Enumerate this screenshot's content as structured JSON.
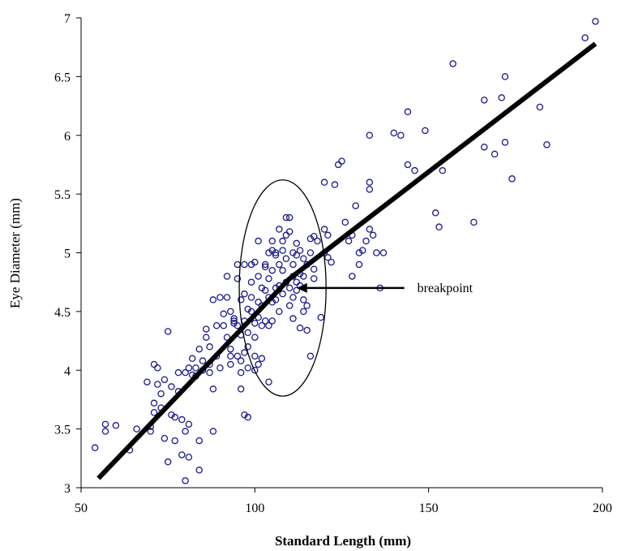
{
  "chart_data": {
    "type": "scatter",
    "title": "",
    "xlabel": "Standard Length (mm)",
    "ylabel": "Eye Diameter (mm)",
    "xlim": [
      50,
      200
    ],
    "ylim": [
      3,
      7
    ],
    "x_ticks": [
      "50",
      "100",
      "150",
      "200"
    ],
    "y_ticks": [
      "3",
      "3.5",
      "4",
      "4.5",
      "5",
      "5.5",
      "6",
      "6.5",
      "7"
    ],
    "grid": false,
    "legend": "none",
    "colors": {
      "points": "#1a1a8c",
      "fit_line": "#000000"
    },
    "fit_line": {
      "type": "piecewise-linear",
      "points": [
        [
          55,
          3.08
        ],
        [
          110,
          4.78
        ],
        [
          198,
          6.78
        ]
      ]
    },
    "annotation": {
      "text": "breakpoint",
      "arrow_from": [
        143,
        4.7
      ],
      "arrow_to": [
        112,
        4.7
      ],
      "ellipse_center": [
        108,
        4.7
      ],
      "ellipse_radii": [
        12.5,
        0.92
      ]
    },
    "points": [
      [
        54,
        3.34
      ],
      [
        57,
        3.48
      ],
      [
        57,
        3.54
      ],
      [
        60,
        3.53
      ],
      [
        64,
        3.32
      ],
      [
        66,
        3.5
      ],
      [
        69,
        3.9
      ],
      [
        70,
        3.52
      ],
      [
        70,
        3.48
      ],
      [
        71,
        3.72
      ],
      [
        71,
        3.64
      ],
      [
        71,
        4.05
      ],
      [
        72,
        4.02
      ],
      [
        72,
        3.88
      ],
      [
        73,
        3.8
      ],
      [
        73,
        3.68
      ],
      [
        74,
        3.42
      ],
      [
        74,
        3.92
      ],
      [
        75,
        3.22
      ],
      [
        75,
        4.33
      ],
      [
        76,
        3.86
      ],
      [
        76,
        3.62
      ],
      [
        77,
        3.6
      ],
      [
        77,
        3.4
      ],
      [
        78,
        3.82
      ],
      [
        78,
        3.98
      ],
      [
        79,
        3.58
      ],
      [
        79,
        3.28
      ],
      [
        80,
        3.06
      ],
      [
        80,
        3.48
      ],
      [
        80,
        3.98
      ],
      [
        81,
        3.54
      ],
      [
        81,
        3.26
      ],
      [
        81,
        4.02
      ],
      [
        82,
        3.96
      ],
      [
        82,
        4.1
      ],
      [
        83,
        4.02
      ],
      [
        83,
        3.95
      ],
      [
        84,
        3.15
      ],
      [
        84,
        3.4
      ],
      [
        84,
        4.18
      ],
      [
        85,
        4.0
      ],
      [
        85,
        4.08
      ],
      [
        86,
        4.28
      ],
      [
        86,
        4.35
      ],
      [
        87,
        4.2
      ],
      [
        87,
        4.05
      ],
      [
        87,
        3.98
      ],
      [
        88,
        3.48
      ],
      [
        88,
        3.84
      ],
      [
        88,
        4.6
      ],
      [
        89,
        4.38
      ],
      [
        89,
        4.12
      ],
      [
        90,
        4.02
      ],
      [
        90,
        4.62
      ],
      [
        91,
        4.48
      ],
      [
        91,
        4.38
      ],
      [
        92,
        4.62
      ],
      [
        92,
        4.8
      ],
      [
        92,
        4.28
      ],
      [
        93,
        4.12
      ],
      [
        93,
        4.05
      ],
      [
        93,
        4.18
      ],
      [
        93,
        4.5
      ],
      [
        94,
        4.4
      ],
      [
        94,
        4.42
      ],
      [
        94,
        4.44
      ],
      [
        95,
        4.12
      ],
      [
        95,
        4.38
      ],
      [
        95,
        4.78
      ],
      [
        95,
        4.9
      ],
      [
        96,
        4.6
      ],
      [
        96,
        4.3
      ],
      [
        96,
        4.08
      ],
      [
        96,
        3.84
      ],
      [
        96,
        3.98
      ],
      [
        97,
        3.62
      ],
      [
        97,
        4.15
      ],
      [
        97,
        4.42
      ],
      [
        97,
        4.9
      ],
      [
        97,
        4.65
      ],
      [
        98,
        4.52
      ],
      [
        98,
        4.32
      ],
      [
        98,
        4.2
      ],
      [
        98,
        4.02
      ],
      [
        98,
        3.6
      ],
      [
        99,
        4.9
      ],
      [
        99,
        4.75
      ],
      [
        99,
        4.62
      ],
      [
        99,
        4.5
      ],
      [
        100,
        4.92
      ],
      [
        100,
        4.4
      ],
      [
        100,
        4.28
      ],
      [
        100,
        4.0
      ],
      [
        100,
        4.12
      ],
      [
        101,
        4.45
      ],
      [
        101,
        4.58
      ],
      [
        101,
        5.1
      ],
      [
        101,
        4.8
      ],
      [
        101,
        4.05
      ],
      [
        102,
        4.7
      ],
      [
        102,
        4.55
      ],
      [
        102,
        4.38
      ],
      [
        102,
        4.1
      ],
      [
        103,
        4.88
      ],
      [
        103,
        4.68
      ],
      [
        103,
        4.42
      ],
      [
        103,
        4.9
      ],
      [
        104,
        5.0
      ],
      [
        104,
        4.78
      ],
      [
        104,
        4.62
      ],
      [
        104,
        4.38
      ],
      [
        104,
        3.9
      ],
      [
        105,
        5.1
      ],
      [
        105,
        5.02
      ],
      [
        105,
        4.85
      ],
      [
        105,
        4.58
      ],
      [
        105,
        4.42
      ],
      [
        106,
        4.98
      ],
      [
        106,
        4.7
      ],
      [
        106,
        4.6
      ],
      [
        106,
        5.0
      ],
      [
        107,
        5.2
      ],
      [
        107,
        4.9
      ],
      [
        107,
        4.72
      ],
      [
        107,
        4.5
      ],
      [
        108,
        5.1
      ],
      [
        108,
        5.02
      ],
      [
        108,
        4.85
      ],
      [
        108,
        4.65
      ],
      [
        109,
        5.3
      ],
      [
        109,
        5.15
      ],
      [
        109,
        4.95
      ],
      [
        109,
        4.75
      ],
      [
        110,
        5.3
      ],
      [
        110,
        5.18
      ],
      [
        110,
        4.7
      ],
      [
        110,
        4.55
      ],
      [
        111,
        5.0
      ],
      [
        111,
        4.9
      ],
      [
        111,
        4.8
      ],
      [
        111,
        4.62
      ],
      [
        111,
        4.44
      ],
      [
        112,
        5.08
      ],
      [
        112,
        4.98
      ],
      [
        112,
        4.75
      ],
      [
        112,
        4.68
      ],
      [
        113,
        5.02
      ],
      [
        113,
        4.82
      ],
      [
        113,
        4.72
      ],
      [
        113,
        4.36
      ],
      [
        114,
        4.95
      ],
      [
        114,
        4.8
      ],
      [
        114,
        4.6
      ],
      [
        114,
        4.5
      ],
      [
        115,
        4.9
      ],
      [
        115,
        4.55
      ],
      [
        115,
        4.34
      ],
      [
        116,
        4.12
      ],
      [
        116,
        5.12
      ],
      [
        116,
        5.0
      ],
      [
        117,
        5.14
      ],
      [
        117,
        4.86
      ],
      [
        117,
        4.78
      ],
      [
        118,
        5.1
      ],
      [
        119,
        4.45
      ],
      [
        120,
        5.2
      ],
      [
        120,
        5.0
      ],
      [
        120,
        5.6
      ],
      [
        121,
        4.96
      ],
      [
        121,
        5.15
      ],
      [
        122,
        4.92
      ],
      [
        123,
        5.58
      ],
      [
        124,
        5.75
      ],
      [
        125,
        5.78
      ],
      [
        126,
        5.26
      ],
      [
        127,
        5.1
      ],
      [
        128,
        4.8
      ],
      [
        128,
        5.15
      ],
      [
        129,
        5.4
      ],
      [
        130,
        4.9
      ],
      [
        130,
        5.0
      ],
      [
        131,
        5.02
      ],
      [
        132,
        5.1
      ],
      [
        133,
        5.6
      ],
      [
        133,
        5.54
      ],
      [
        133,
        6.0
      ],
      [
        133,
        5.2
      ],
      [
        134,
        5.15
      ],
      [
        135,
        5.0
      ],
      [
        136,
        4.7
      ],
      [
        137,
        5.0
      ],
      [
        140,
        6.02
      ],
      [
        142,
        6.0
      ],
      [
        144,
        5.75
      ],
      [
        144,
        6.2
      ],
      [
        146,
        5.7
      ],
      [
        149,
        6.04
      ],
      [
        152,
        5.34
      ],
      [
        153,
        5.22
      ],
      [
        154,
        5.7
      ],
      [
        157,
        6.61
      ],
      [
        163,
        5.26
      ],
      [
        166,
        5.9
      ],
      [
        166,
        6.3
      ],
      [
        169,
        5.84
      ],
      [
        171,
        6.32
      ],
      [
        172,
        5.94
      ],
      [
        172,
        6.5
      ],
      [
        174,
        5.63
      ],
      [
        182,
        6.24
      ],
      [
        184,
        5.92
      ],
      [
        195,
        6.83
      ],
      [
        198,
        6.97
      ]
    ]
  }
}
